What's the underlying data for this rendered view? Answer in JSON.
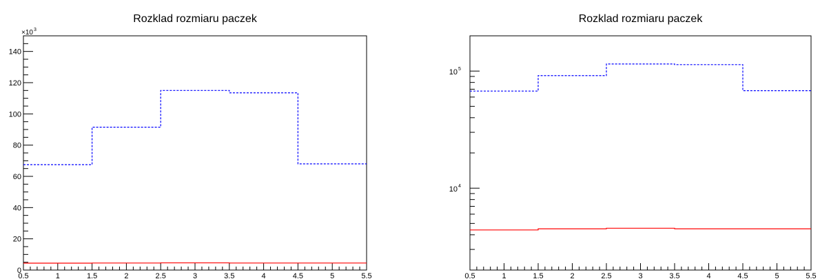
{
  "chart_data": [
    {
      "type": "line",
      "title": "Rozklad rozmiaru paczek",
      "xlabel": "",
      "ylabel": "",
      "xlim": [
        0.5,
        5.5
      ],
      "ylim": [
        0,
        150
      ],
      "y_scale": "linear",
      "y_multiplier_label": "×10",
      "y_multiplier_exp": "3",
      "x_ticks": [
        0.5,
        1,
        1.5,
        2,
        2.5,
        3,
        3.5,
        4,
        4.5,
        5,
        5.5
      ],
      "x_tick_labels": [
        "0.5",
        "1",
        "1.5",
        "2",
        "2.5",
        "3",
        "3.5",
        "4",
        "4.5",
        "5",
        "5.5"
      ],
      "y_ticks": [
        0,
        20,
        40,
        60,
        80,
        100,
        120,
        140
      ],
      "y_tick_labels": [
        "0",
        "20",
        "40",
        "60",
        "80",
        "100",
        "120",
        "140"
      ],
      "bin_edges": [
        0.5,
        1.5,
        2.5,
        3.5,
        4.5,
        5.5
      ],
      "series": [
        {
          "color": "#0000ff",
          "style": "dashed",
          "values": [
            67.5,
            91.5,
            115,
            113.5,
            68
          ]
        },
        {
          "color": "#ff0000",
          "style": "solid",
          "values": [
            4.4,
            4.5,
            4.6,
            4.5,
            4.5
          ]
        }
      ],
      "grid": false,
      "legend": "none"
    },
    {
      "type": "line",
      "title": "Rozklad rozmiaru paczek",
      "xlabel": "",
      "ylabel": "",
      "xlim": [
        0.5,
        5.5
      ],
      "ylim": [
        2000,
        200000
      ],
      "y_scale": "log",
      "x_ticks": [
        0.5,
        1,
        1.5,
        2,
        2.5,
        3,
        3.5,
        4,
        4.5,
        5,
        5.5
      ],
      "x_tick_labels": [
        "0.5",
        "1",
        "1.5",
        "2",
        "2.5",
        "3",
        "3.5",
        "4",
        "4.5",
        "5",
        "5.5"
      ],
      "y_major_ticks": [
        10000,
        100000
      ],
      "y_tick_base": "10",
      "y_tick_exps": [
        "4",
        "5"
      ],
      "bin_edges": [
        0.5,
        1.5,
        2.5,
        3.5,
        4.5,
        5.5
      ],
      "series": [
        {
          "color": "#0000ff",
          "style": "dashed",
          "values": [
            67500,
            91500,
            115000,
            113500,
            68000
          ]
        },
        {
          "color": "#ff0000",
          "style": "solid",
          "values": [
            4400,
            4500,
            4550,
            4500,
            4500
          ]
        }
      ],
      "grid": false,
      "legend": "none"
    }
  ]
}
